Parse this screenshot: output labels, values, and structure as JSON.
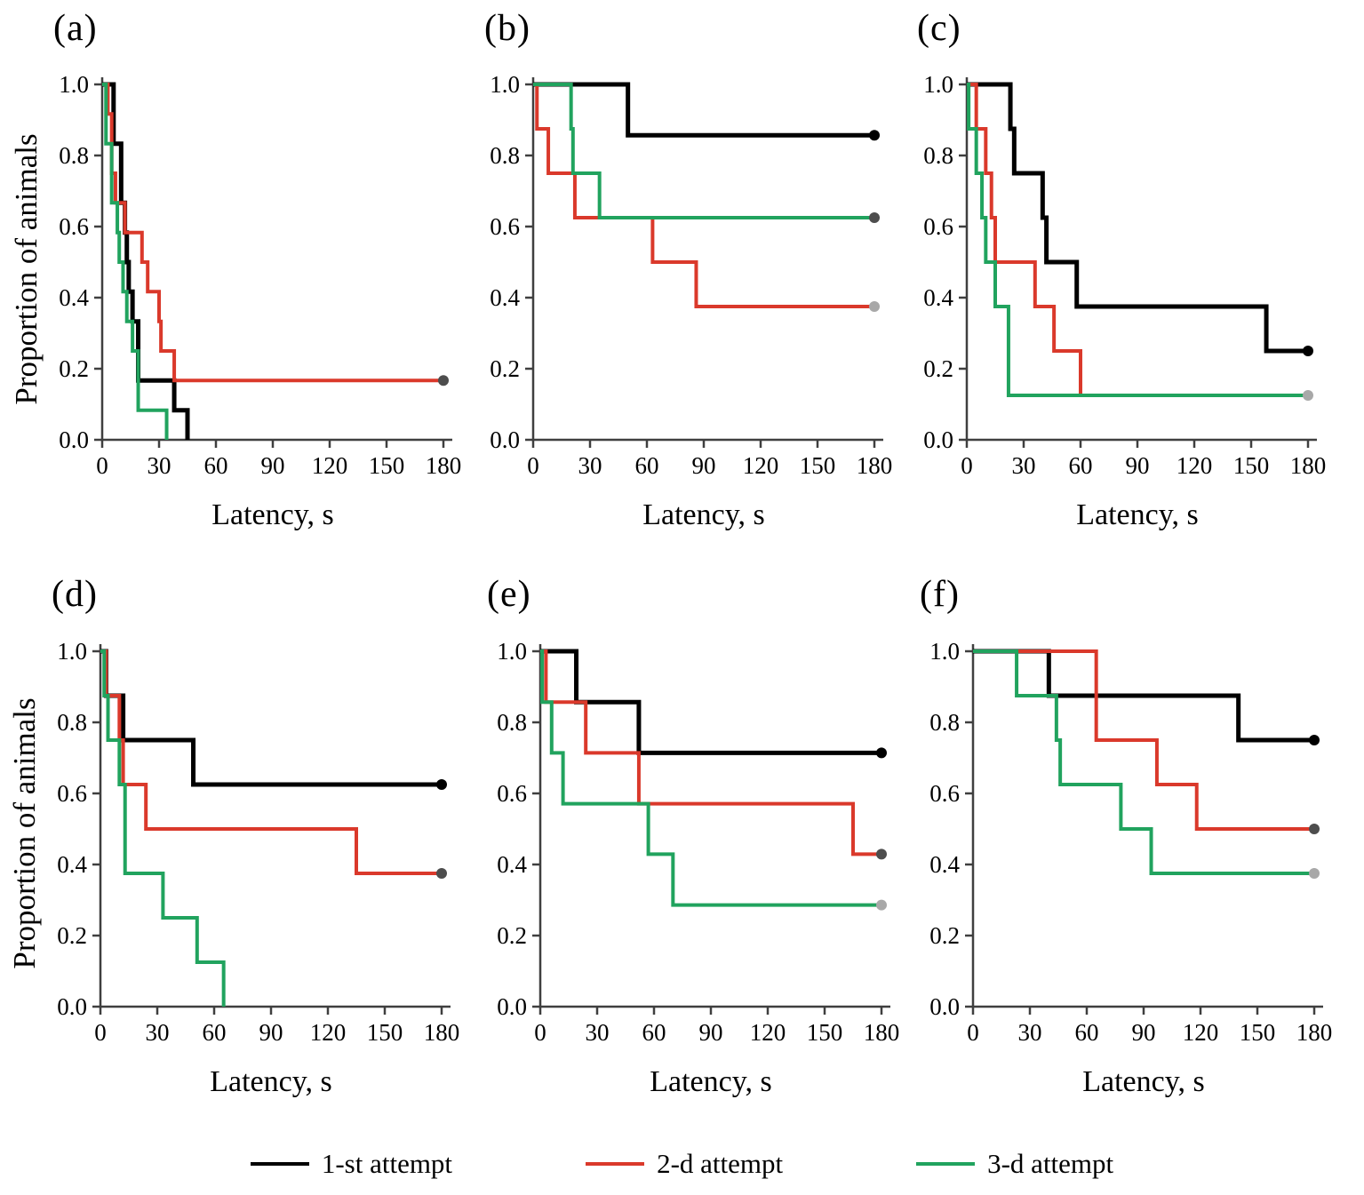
{
  "axis": {
    "x_label": "Latency, s",
    "y_label": "Proportion of animals",
    "x_ticks": [
      0,
      30,
      60,
      90,
      120,
      150,
      180
    ],
    "y_ticks": [
      1.0,
      0.8,
      0.6,
      0.4,
      0.2,
      0.0
    ],
    "x_range": [
      0,
      180
    ],
    "y_range": [
      0.0,
      1.0
    ]
  },
  "colors": {
    "black": "#000000",
    "red": "#da392b",
    "green": "#21a35e",
    "dot_black": "#000000",
    "dot_dark": "#4d4d4d",
    "dot_light": "#a8a8a8",
    "axis": "#3f3f3f"
  },
  "legend": [
    {
      "key": "black",
      "label": "1-st attempt"
    },
    {
      "key": "red",
      "label": "2-d attempt"
    },
    {
      "key": "green",
      "label": "3-d attempt"
    }
  ],
  "chart_data": {
    "type": "line",
    "subtype": "kaplan-meier-step-survival",
    "xlabel": "Latency, s",
    "ylabel": "Proportion of animals",
    "xlim": [
      0,
      180
    ],
    "ylim": [
      0.0,
      1.0
    ],
    "grid": false,
    "panels": [
      {
        "id": "a",
        "label": "(a)",
        "series": [
          {
            "name": "1-st attempt",
            "color": "black",
            "points": [
              [
                0,
                1.0
              ],
              [
                6,
                0.833
              ],
              [
                10,
                0.667
              ],
              [
                12,
                0.583
              ],
              [
                13,
                0.5
              ],
              [
                14,
                0.417
              ],
              [
                16,
                0.333
              ],
              [
                19,
                0.167
              ],
              [
                38,
                0.083
              ],
              [
                45,
                0.0
              ]
            ],
            "end_dot": null
          },
          {
            "name": "2-d attempt",
            "color": "red",
            "points": [
              [
                0,
                1.0
              ],
              [
                3,
                0.917
              ],
              [
                5,
                0.75
              ],
              [
                7,
                0.667
              ],
              [
                12,
                0.583
              ],
              [
                21,
                0.5
              ],
              [
                24,
                0.417
              ],
              [
                30,
                0.333
              ],
              [
                31,
                0.25
              ],
              [
                38,
                0.167
              ],
              [
                180,
                0.167
              ]
            ],
            "end_dot": "dot_dark"
          },
          {
            "name": "3-d attempt",
            "color": "green",
            "points": [
              [
                0,
                1.0
              ],
              [
                2,
                0.833
              ],
              [
                5,
                0.667
              ],
              [
                8,
                0.583
              ],
              [
                9,
                0.5
              ],
              [
                11,
                0.417
              ],
              [
                13,
                0.333
              ],
              [
                16,
                0.25
              ],
              [
                19,
                0.083
              ],
              [
                34,
                0.0
              ]
            ],
            "end_dot": null
          }
        ]
      },
      {
        "id": "b",
        "label": "(b)",
        "series": [
          {
            "name": "1-st attempt",
            "color": "black",
            "points": [
              [
                0,
                1.0
              ],
              [
                50,
                0.857
              ],
              [
                180,
                0.857
              ]
            ],
            "end_dot": "dot_black"
          },
          {
            "name": "2-d attempt",
            "color": "red",
            "points": [
              [
                0,
                1.0
              ],
              [
                2,
                0.875
              ],
              [
                8,
                0.75
              ],
              [
                22,
                0.625
              ],
              [
                63,
                0.5
              ],
              [
                86,
                0.375
              ],
              [
                180,
                0.375
              ]
            ],
            "end_dot": "dot_light"
          },
          {
            "name": "3-d attempt",
            "color": "green",
            "points": [
              [
                0,
                1.0
              ],
              [
                20,
                0.875
              ],
              [
                21,
                0.75
              ],
              [
                35,
                0.625
              ],
              [
                180,
                0.625
              ]
            ],
            "end_dot": "dot_dark"
          }
        ]
      },
      {
        "id": "c",
        "label": "(c)",
        "series": [
          {
            "name": "1-st attempt",
            "color": "black",
            "points": [
              [
                0,
                1.0
              ],
              [
                23,
                0.875
              ],
              [
                25,
                0.75
              ],
              [
                40,
                0.625
              ],
              [
                42,
                0.5
              ],
              [
                58,
                0.375
              ],
              [
                158,
                0.25
              ],
              [
                180,
                0.25
              ]
            ],
            "end_dot": "dot_black"
          },
          {
            "name": "2-d attempt",
            "color": "red",
            "points": [
              [
                0,
                1.0
              ],
              [
                5,
                0.875
              ],
              [
                10,
                0.75
              ],
              [
                13,
                0.625
              ],
              [
                15,
                0.5
              ],
              [
                36,
                0.375
              ],
              [
                46,
                0.25
              ],
              [
                60,
                0.125
              ]
            ],
            "end_dot": null
          },
          {
            "name": "3-d attempt",
            "color": "green",
            "points": [
              [
                0,
                1.0
              ],
              [
                1,
                0.875
              ],
              [
                5,
                0.75
              ],
              [
                8,
                0.625
              ],
              [
                10,
                0.5
              ],
              [
                15,
                0.375
              ],
              [
                22,
                0.125
              ],
              [
                180,
                0.125
              ]
            ],
            "end_dot": "dot_light"
          }
        ]
      },
      {
        "id": "d",
        "label": "(d)",
        "series": [
          {
            "name": "1-st attempt",
            "color": "black",
            "points": [
              [
                0,
                1.0
              ],
              [
                3,
                0.875
              ],
              [
                12,
                0.75
              ],
              [
                49,
                0.625
              ],
              [
                180,
                0.625
              ]
            ],
            "end_dot": "dot_black"
          },
          {
            "name": "2-d attempt",
            "color": "red",
            "points": [
              [
                0,
                1.0
              ],
              [
                3,
                0.875
              ],
              [
                10,
                0.75
              ],
              [
                12,
                0.625
              ],
              [
                24,
                0.5
              ],
              [
                135,
                0.375
              ],
              [
                180,
                0.375
              ]
            ],
            "end_dot": "dot_dark"
          },
          {
            "name": "3-d attempt",
            "color": "green",
            "points": [
              [
                0,
                1.0
              ],
              [
                2,
                0.875
              ],
              [
                4,
                0.75
              ],
              [
                10,
                0.625
              ],
              [
                13,
                0.375
              ],
              [
                33,
                0.25
              ],
              [
                51,
                0.125
              ],
              [
                65,
                0.0
              ]
            ],
            "end_dot": null
          }
        ]
      },
      {
        "id": "e",
        "label": "(e)",
        "series": [
          {
            "name": "1-st attempt",
            "color": "black",
            "points": [
              [
                0,
                1.0
              ],
              [
                19,
                0.857
              ],
              [
                52,
                0.714
              ],
              [
                180,
                0.714
              ]
            ],
            "end_dot": "dot_black"
          },
          {
            "name": "2-d attempt",
            "color": "red",
            "points": [
              [
                0,
                1.0
              ],
              [
                3,
                0.857
              ],
              [
                24,
                0.714
              ],
              [
                52,
                0.571
              ],
              [
                165,
                0.429
              ],
              [
                180,
                0.429
              ]
            ],
            "end_dot": "dot_dark"
          },
          {
            "name": "3-d attempt",
            "color": "green",
            "points": [
              [
                0,
                1.0
              ],
              [
                1,
                0.857
              ],
              [
                6,
                0.714
              ],
              [
                12,
                0.571
              ],
              [
                57,
                0.429
              ],
              [
                70,
                0.286
              ],
              [
                180,
                0.286
              ]
            ],
            "end_dot": "dot_light"
          }
        ]
      },
      {
        "id": "f",
        "label": "(f)",
        "series": [
          {
            "name": "1-st attempt",
            "color": "black",
            "points": [
              [
                0,
                1.0
              ],
              [
                40,
                0.875
              ],
              [
                140,
                0.75
              ],
              [
                180,
                0.75
              ]
            ],
            "end_dot": "dot_black"
          },
          {
            "name": "2-d attempt",
            "color": "red",
            "points": [
              [
                0,
                1.0
              ],
              [
                65,
                0.75
              ],
              [
                97,
                0.625
              ],
              [
                118,
                0.5
              ],
              [
                180,
                0.5
              ]
            ],
            "end_dot": "dot_dark"
          },
          {
            "name": "3-d attempt",
            "color": "green",
            "points": [
              [
                0,
                1.0
              ],
              [
                23,
                0.875
              ],
              [
                44,
                0.75
              ],
              [
                46,
                0.625
              ],
              [
                78,
                0.5
              ],
              [
                94,
                0.375
              ],
              [
                180,
                0.375
              ]
            ],
            "end_dot": "dot_light"
          }
        ]
      }
    ]
  }
}
